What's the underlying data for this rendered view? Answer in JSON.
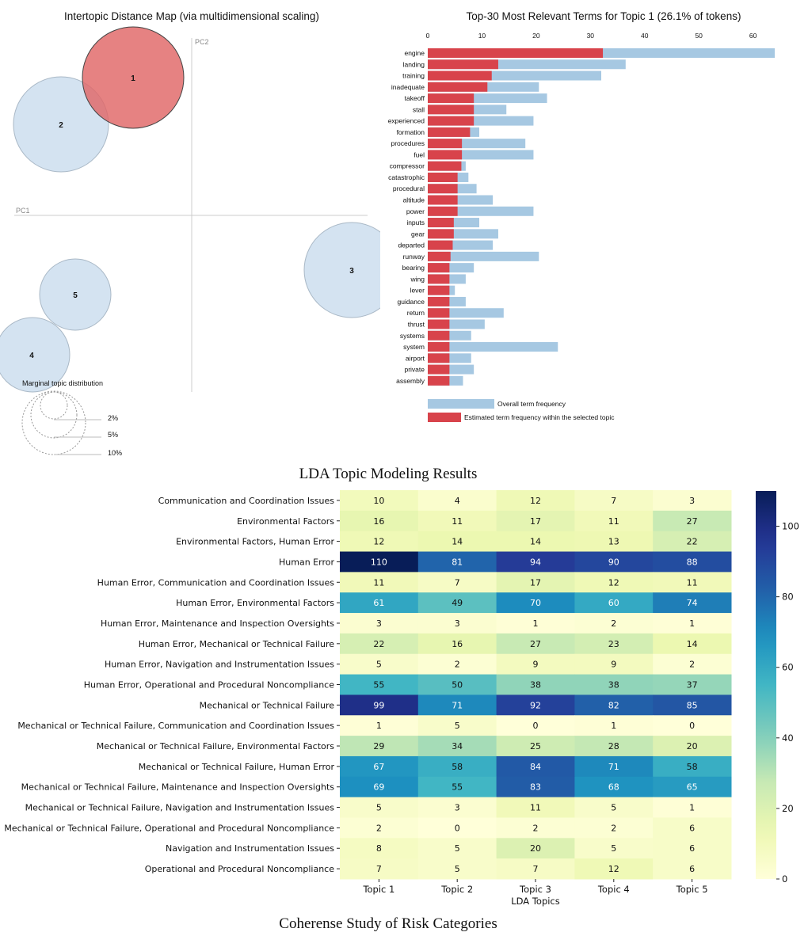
{
  "captions": {
    "lda": "LDA Topic Modeling Results",
    "coherence": "Coherense Study of Risk Categories"
  },
  "colors": {
    "topic_selected": "#e06666",
    "topic_other": "#c6d9ec",
    "overall_bar": "#a6c8e2",
    "topic_bar": "#d8434b"
  },
  "chart_data": [
    {
      "type": "scatter",
      "title": "Intertopic Distance Map (via multidimensional scaling)",
      "xlabel": "PC1",
      "ylabel": "PC2",
      "points": [
        {
          "label": "1",
          "selected": true
        },
        {
          "label": "2",
          "selected": false
        },
        {
          "label": "3",
          "selected": false
        },
        {
          "label": "4",
          "selected": false
        },
        {
          "label": "5",
          "selected": false
        }
      ],
      "size_legend": {
        "title": "Marginal topic distribution",
        "labels": [
          "2%",
          "5%",
          "10%"
        ]
      }
    },
    {
      "type": "bar",
      "orientation": "horizontal",
      "title": "Top-30 Most Relevant Terms for Topic 1 (26.1% of tokens)",
      "xticks": [
        0,
        10,
        20,
        30,
        40,
        50,
        60
      ],
      "xlim": [
        0,
        64
      ],
      "categories": [
        "engine",
        "landing",
        "training",
        "inadequate",
        "takeoff",
        "stall",
        "experienced",
        "formation",
        "procedures",
        "fuel",
        "compressor",
        "catastrophic",
        "procedural",
        "altitude",
        "power",
        "inputs",
        "gear",
        "departed",
        "runway",
        "bearing",
        "wing",
        "lever",
        "guidance",
        "return",
        "thrust",
        "systems",
        "system",
        "airport",
        "private",
        "assembly"
      ],
      "series": [
        {
          "name": "Overall term frequency",
          "values": [
            64,
            36.5,
            32,
            20.5,
            22,
            14.5,
            19.5,
            9.5,
            18,
            19.5,
            7,
            7.5,
            9,
            12,
            19.5,
            9.5,
            13,
            12,
            20.5,
            8.5,
            7,
            5,
            7,
            14,
            10.5,
            8,
            24,
            8,
            8.5,
            6.5
          ]
        },
        {
          "name": "Estimated term frequency within the selected topic",
          "values": [
            32.3,
            13,
            11.8,
            11,
            8.5,
            8.5,
            8.5,
            7.8,
            6.3,
            6.3,
            6.2,
            5.5,
            5.5,
            5.5,
            5.5,
            4.8,
            4.8,
            4.6,
            4.2,
            4,
            4,
            4,
            4,
            4,
            4,
            4,
            4,
            4,
            4,
            4
          ]
        }
      ]
    },
    {
      "type": "heatmap",
      "xlabel": "LDA Topics",
      "columns": [
        "Topic 1",
        "Topic 2",
        "Topic 3",
        "Topic 4",
        "Topic 5"
      ],
      "rows": [
        "Communication and Coordination Issues",
        "Environmental Factors",
        "Environmental Factors, Human Error",
        "Human Error",
        "Human Error, Communication and Coordination Issues",
        "Human Error, Environmental Factors",
        "Human Error, Maintenance and Inspection Oversights",
        "Human Error, Mechanical or Technical Failure",
        "Human Error, Navigation and Instrumentation Issues",
        "Human Error, Operational and Procedural Noncompliance",
        "Mechanical or Technical Failure",
        "Mechanical or Technical Failure, Communication and Coordination Issues",
        "Mechanical or Technical Failure, Environmental Factors",
        "Mechanical or Technical Failure, Human Error",
        "Mechanical or Technical Failure, Maintenance and Inspection Oversights",
        "Mechanical or Technical Failure, Navigation and Instrumentation Issues",
        "Mechanical or Technical Failure, Operational and Procedural Noncompliance",
        "Navigation and Instrumentation Issues",
        "Operational and Procedural Noncompliance"
      ],
      "values": [
        [
          10,
          4,
          12,
          7,
          3
        ],
        [
          16,
          11,
          17,
          11,
          27
        ],
        [
          12,
          14,
          14,
          13,
          22
        ],
        [
          110,
          81,
          94,
          90,
          88
        ],
        [
          11,
          7,
          17,
          12,
          11
        ],
        [
          61,
          49,
          70,
          60,
          74
        ],
        [
          3,
          3,
          1,
          2,
          1
        ],
        [
          22,
          16,
          27,
          23,
          14
        ],
        [
          5,
          2,
          9,
          9,
          2
        ],
        [
          55,
          50,
          38,
          38,
          37
        ],
        [
          99,
          71,
          92,
          82,
          85
        ],
        [
          1,
          5,
          0,
          1,
          0
        ],
        [
          29,
          34,
          25,
          28,
          20
        ],
        [
          67,
          58,
          84,
          71,
          58
        ],
        [
          69,
          55,
          83,
          68,
          65
        ],
        [
          5,
          3,
          11,
          5,
          1
        ],
        [
          2,
          0,
          2,
          2,
          6
        ],
        [
          8,
          5,
          20,
          5,
          6
        ],
        [
          7,
          5,
          7,
          12,
          6
        ]
      ],
      "colorbar": {
        "ticks": [
          0,
          20,
          40,
          60,
          80,
          100
        ],
        "vmin": 0,
        "vmax": 110,
        "colormap": "YlGnBu"
      }
    }
  ]
}
